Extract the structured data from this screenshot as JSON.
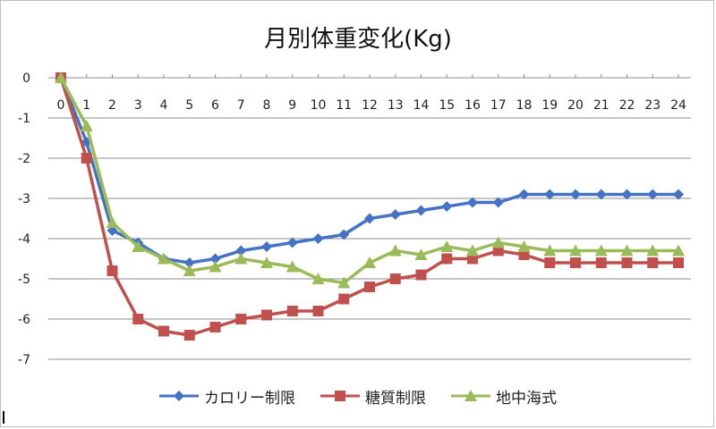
{
  "chart_data": {
    "type": "line",
    "title": "月別体重変化(Kg)",
    "xlabel": "",
    "ylabel": "",
    "x": [
      0,
      1,
      2,
      3,
      4,
      5,
      6,
      7,
      8,
      9,
      10,
      11,
      12,
      13,
      14,
      15,
      16,
      17,
      18,
      19,
      20,
      21,
      22,
      23,
      24
    ],
    "ylim": [
      -7,
      0
    ],
    "yticks": [
      0,
      -1,
      -2,
      -3,
      -4,
      -5,
      -6,
      -7
    ],
    "grid": true,
    "legend": "bottom",
    "series": [
      {
        "name": "カロリー制限",
        "color": "#4472c4",
        "marker": "diamond",
        "values": [
          0,
          -1.6,
          -3.8,
          -4.1,
          -4.5,
          -4.6,
          -4.5,
          -4.3,
          -4.2,
          -4.1,
          -4.0,
          -3.9,
          -3.5,
          -3.4,
          -3.3,
          -3.2,
          -3.1,
          -3.1,
          -2.9,
          -2.9,
          -2.9,
          -2.9,
          -2.9,
          -2.9,
          -2.9
        ]
      },
      {
        "name": "糖質制限",
        "color": "#c0504d",
        "marker": "square",
        "values": [
          0,
          -2.0,
          -4.8,
          -6.0,
          -6.3,
          -6.4,
          -6.2,
          -6.0,
          -5.9,
          -5.8,
          -5.8,
          -5.5,
          -5.2,
          -5.0,
          -4.9,
          -4.5,
          -4.5,
          -4.3,
          -4.4,
          -4.6,
          -4.6,
          -4.6,
          -4.6,
          -4.6,
          -4.6
        ]
      },
      {
        "name": "地中海式",
        "color": "#9bbb59",
        "marker": "triangle",
        "values": [
          0,
          -1.2,
          -3.6,
          -4.2,
          -4.5,
          -4.8,
          -4.7,
          -4.5,
          -4.6,
          -4.7,
          -5.0,
          -5.1,
          -4.6,
          -4.3,
          -4.4,
          -4.2,
          -4.3,
          -4.1,
          -4.2,
          -4.3,
          -4.3,
          -4.3,
          -4.3,
          -4.3,
          -4.3
        ]
      }
    ]
  }
}
